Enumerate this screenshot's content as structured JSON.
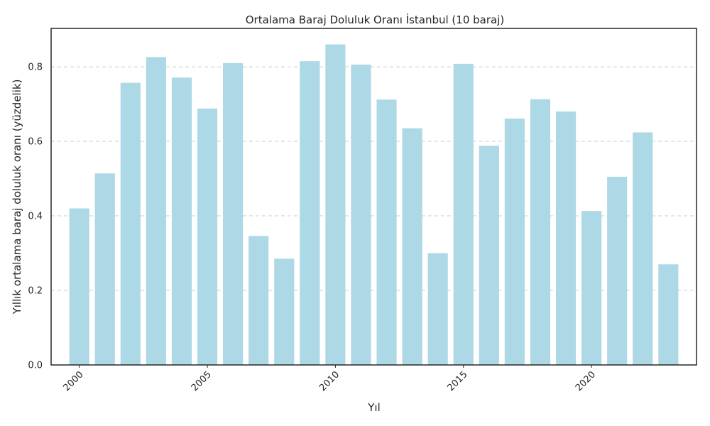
{
  "chart_data": {
    "type": "bar",
    "title": "Ortalama Baraj Doluluk Oranı İstanbul (10 baraj)",
    "xlabel": "Yıl",
    "ylabel": "Yıllık ortalama baraj doluluk oranı (yüzdelik)",
    "categories": [
      2000,
      2001,
      2002,
      2003,
      2004,
      2005,
      2006,
      2007,
      2008,
      2009,
      2010,
      2011,
      2012,
      2013,
      2014,
      2015,
      2016,
      2017,
      2018,
      2019,
      2020,
      2021,
      2022,
      2023
    ],
    "values": [
      0.42,
      0.514,
      0.757,
      0.826,
      0.771,
      0.688,
      0.81,
      0.346,
      0.285,
      0.815,
      0.86,
      0.806,
      0.712,
      0.635,
      0.3,
      0.808,
      0.588,
      0.661,
      0.713,
      0.68,
      0.413,
      0.505,
      0.624,
      0.27
    ],
    "xticks": [
      2000,
      2005,
      2010,
      2015,
      2020
    ],
    "xtick_labels": [
      "2000",
      "2005",
      "2010",
      "2015",
      "2020"
    ],
    "yticks": [
      0.0,
      0.2,
      0.4,
      0.6,
      0.8
    ],
    "ytick_labels": [
      "0.0",
      "0.2",
      "0.4",
      "0.6",
      "0.8"
    ],
    "xlim": [
      1998.9,
      2024.1
    ],
    "ylim": [
      0,
      0.903
    ],
    "grid": "horizontal-dashed",
    "bar_color": "#add8e6"
  }
}
